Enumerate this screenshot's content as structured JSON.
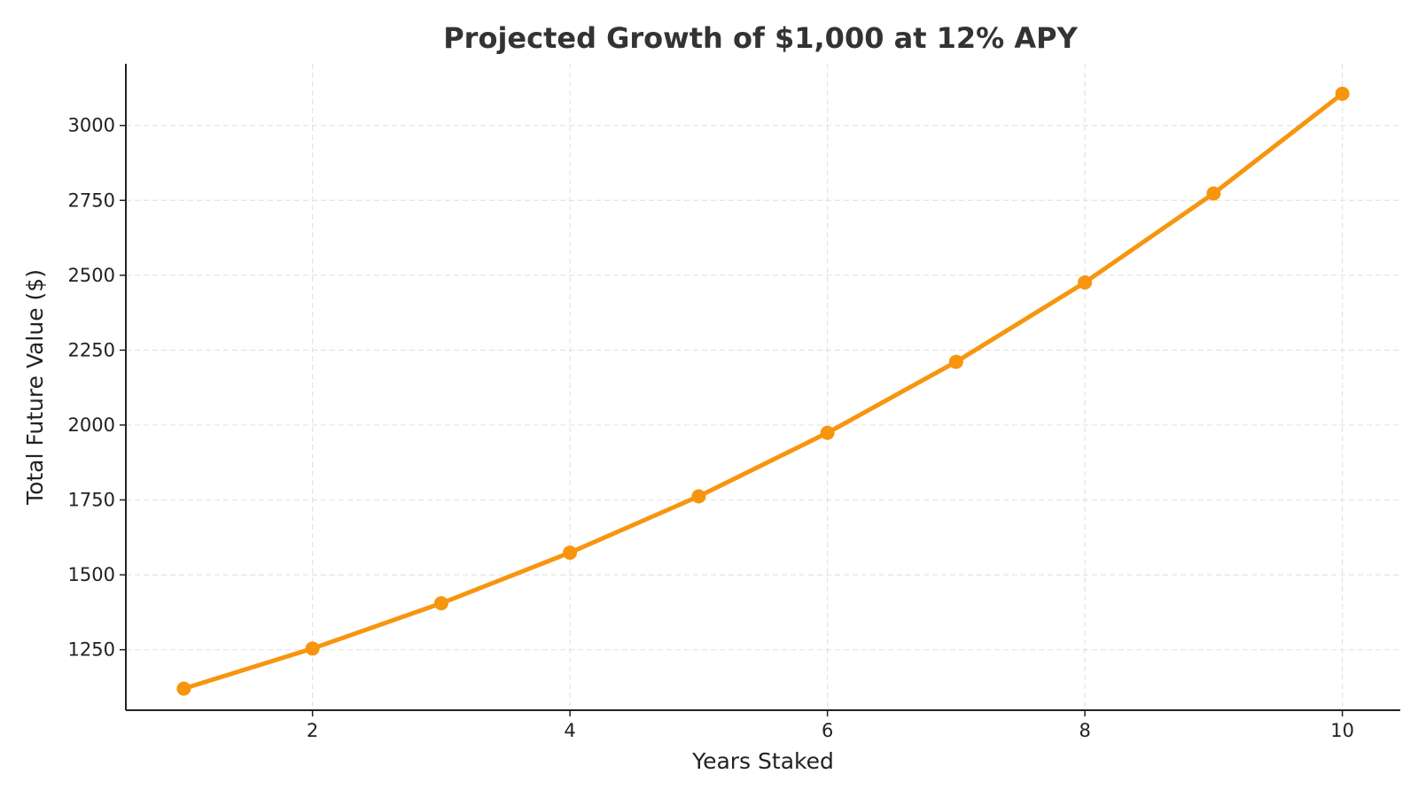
{
  "chart_data": {
    "type": "line",
    "title": "Projected Growth of $1,000 at 12% APY",
    "xlabel": "Years Staked",
    "ylabel": "Total Future Value ($)",
    "x": [
      1,
      2,
      3,
      4,
      5,
      6,
      7,
      8,
      9,
      10
    ],
    "series": [
      {
        "values": [
          1120,
          1254,
          1405,
          1574,
          1762,
          1974,
          2211,
          2476,
          2773,
          3106
        ]
      }
    ],
    "xlim": [
      0.55,
      10.45
    ],
    "ylim": [
      1048,
      3206
    ],
    "xticks": [
      2,
      4,
      6,
      8,
      10
    ],
    "yticks": [
      1250,
      1500,
      1750,
      2000,
      2250,
      2500,
      2750,
      3000
    ],
    "grid": true,
    "legend": "none",
    "colors": {
      "line": "#f7950f",
      "axis": "#222222",
      "grid": "#e3e3e3",
      "title": "#333333"
    }
  }
}
